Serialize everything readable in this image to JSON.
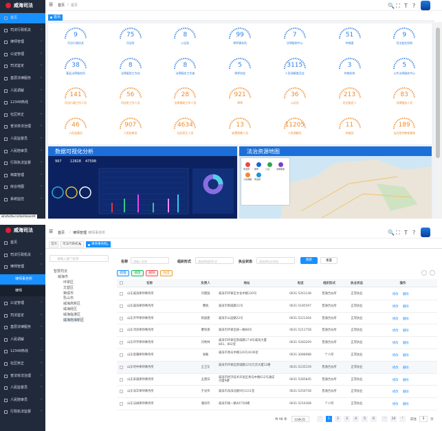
{
  "top": {
    "logo": "威海司法",
    "menu": [
      "首页",
      "司法行政机关",
      "律师管理",
      "公证管理",
      "司法鉴定",
      "基层法律服务",
      "人民调解",
      "12348热线",
      "社区矫正",
      "普法依法治理",
      "人民监督员",
      "人民陪审员",
      "行政执法监督",
      "档案管理",
      "综合地图",
      "系统监控"
    ],
    "breadcrumb": [
      "首页",
      "首页"
    ],
    "tab": "首页",
    "stats": [
      {
        "value": 9,
        "label": "司法行政机关"
      },
      {
        "value": 75,
        "label": "司法所"
      },
      {
        "value": 8,
        "label": "公证处"
      },
      {
        "value": 99,
        "label": "律师事务所"
      },
      {
        "value": 7,
        "label": "法律援助中心"
      },
      {
        "value": 51,
        "label": "仲裁委"
      },
      {
        "value": 9,
        "label": "司法鉴定机构"
      },
      {
        "value": 38,
        "label": "基层法律服务所"
      },
      {
        "value": 8,
        "label": "法律援助工作站"
      },
      {
        "value": 8,
        "label": "法律服务工作者"
      },
      {
        "value": 5,
        "label": "律师协会"
      },
      {
        "value": 3115,
        "label": "人民调解委员会"
      },
      {
        "value": 3,
        "label": "仲裁机构"
      },
      {
        "value": 5,
        "label": "公共法律服务中心"
      },
      {
        "value": 141,
        "label": "司法行政工作人员"
      },
      {
        "value": 56,
        "label": "司法所工作人员"
      },
      {
        "value": 28,
        "label": "法律援助工作人员"
      },
      {
        "value": 921,
        "label": "律师"
      },
      {
        "value": 36,
        "label": "公证员"
      },
      {
        "value": 213,
        "label": "司法鉴定人"
      },
      {
        "value": 83,
        "label": "法律服务人员"
      },
      {
        "value": 46,
        "label": "人民监督员"
      },
      {
        "value": 907,
        "label": "人民陪审员"
      },
      {
        "value": 4634,
        "label": "社区矫正人员"
      },
      {
        "value": 13,
        "label": "安置帮教人员"
      },
      {
        "value": 11205,
        "label": "人民调解员"
      },
      {
        "value": 11,
        "label": "仲裁员"
      },
      {
        "value": 189,
        "label": "法治宣传教育基地"
      }
    ],
    "left_panel": {
      "title": "数据可视化分析",
      "figures": [
        997,
        12828,
        47598
      ]
    },
    "right_panel": {
      "title": "法治资源地图",
      "legend": [
        "司法局",
        "律师",
        "公证",
        "法律援助",
        "人民调解",
        "司法所"
      ]
    },
    "status_url": "whsfxzfw.cn/dashboard#"
  },
  "bottom": {
    "logo": "威海司法",
    "menu": [
      "首页",
      "司法行政机关",
      "律师管理",
      "公证管理",
      "司法鉴定",
      "基层法律服务",
      "人民调解",
      "12348热线",
      "社区矫正",
      "普法依法治理",
      "人民监督员",
      "人民陪审员",
      "行政执法监督"
    ],
    "submenu": [
      "律师事务所",
      "律师"
    ],
    "breadcrumb": [
      "首页",
      "律师管理",
      "律师事务所"
    ],
    "tabs": [
      "首页",
      "司法行政机关",
      "律师事务所"
    ],
    "tree_search": "请输入部门名称",
    "tree": {
      "root": "智慧司法",
      "city": "威海市",
      "districts": [
        "环翠区",
        "文登区",
        "荣成市",
        "乳山市",
        "威海高新区",
        "威海经区",
        "威海临港区",
        "威海南海新区"
      ]
    },
    "filters": [
      {
        "label": "名称",
        "placeholder": "请输入名称"
      },
      {
        "label": "组织形式",
        "placeholder": "请选择组织形式"
      },
      {
        "label": "执业状态",
        "placeholder": "请选择执业状态"
      }
    ],
    "search": "搜索",
    "reset": "重置",
    "actions": [
      "新增",
      "修改",
      "删除",
      "导出"
    ],
    "columns": [
      "名称",
      "负责人",
      "地址",
      "电话",
      "组织形式",
      "执业状态",
      "操作"
    ],
    "rows": [
      [
        "山东威海律师事务所",
        "刘建国",
        "威海市环翠区文化中路120号",
        "0631-5261148",
        "普通合伙所",
        "正常执业"
      ],
      [
        "山东威海律师事务所",
        "曹帆",
        "威海市新威路11号",
        "0631-5185597",
        "普通合伙所",
        "正常执业"
      ],
      [
        "山东齐平律师事务所",
        "杨国建",
        "威海市公园路22号",
        "0631-5221304",
        "普通合伙所",
        "正常执业"
      ],
      [
        "山东鸿泽律师事务所",
        "曹铭艳",
        "威海市环翠区统一路88号",
        "0631-5211758",
        "普通合伙所",
        "正常执业"
      ],
      [
        "山东环宇律师事务所",
        "刘希林",
        "威海市环翠区新威路17-8号威海大厦801、802室",
        "0631-5283209",
        "普通合伙所",
        "正常执业"
      ],
      [
        "山东恩瀚律师事务所",
        "张敏",
        "威海市青岛中路120号4106室",
        "0631-3088988",
        "个人所",
        "正常执业"
      ],
      [
        "山东时中律师事务所",
        "王卫东",
        "威海市环翠区新城路12号元华大厦12楼",
        "0631-5235159",
        "普通合伙所",
        "正常执业"
      ],
      [
        "山东泉诚律师事务所",
        "孟建日",
        "威海市经济技术开发区青岛中路612号通成大厦9楼",
        "0631-5285845",
        "普通合伙所",
        "正常执业"
      ],
      [
        "山东海丰律师事务所",
        "于光伟",
        "威海市海滨北路9号1211室",
        "0631-5256758",
        "普通合伙所",
        "正常执业"
      ],
      [
        "山东法阔律师事务所",
        "潘凤玲",
        "威海市统一路407号8楼",
        "0631-5216308",
        "个人所",
        "正常执业"
      ]
    ],
    "row_ops": [
      "修改",
      "删除"
    ],
    "pagination": {
      "total": "共 98 条",
      "size": "10条/页",
      "pages": [
        "1",
        "2",
        "3",
        "4",
        "5",
        "6",
        "10"
      ],
      "goto": "前往",
      "page": "1",
      "unit": "页"
    }
  }
}
